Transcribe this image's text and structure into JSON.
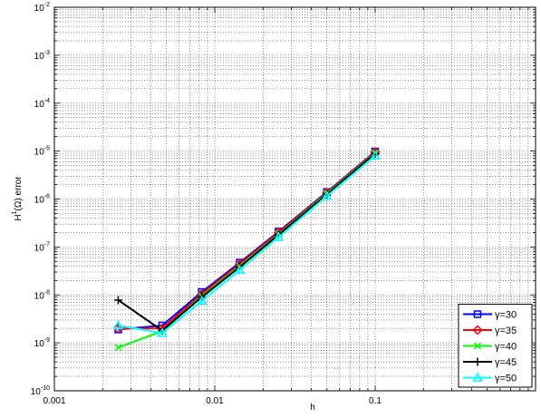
{
  "chart_data": {
    "type": "line",
    "title": "",
    "xlabel": "h",
    "ylabel_main": "H",
    "ylabel_sup": "1",
    "ylabel_rest": "(Ω) error",
    "xscale": "log",
    "yscale": "log",
    "xlim": [
      0.001,
      1
    ],
    "ylim": [
      1e-10,
      0.01
    ],
    "grid": true,
    "legend_position": "bottom-right",
    "x_ticks": [
      {
        "value": 0.001,
        "label": "0.001"
      },
      {
        "value": 0.01,
        "label": "0.01"
      },
      {
        "value": 0.1,
        "label": "0.1"
      }
    ],
    "y_ticks": [
      {
        "value": 1e-10,
        "base": "10",
        "exp": "-10"
      },
      {
        "value": 1e-09,
        "base": "10",
        "exp": "-9"
      },
      {
        "value": 1e-08,
        "base": "10",
        "exp": "-8"
      },
      {
        "value": 1e-07,
        "base": "10",
        "exp": "-7"
      },
      {
        "value": 1e-06,
        "base": "10",
        "exp": "-6"
      },
      {
        "value": 1e-05,
        "base": "10",
        "exp": "-5"
      },
      {
        "value": 0.0001,
        "base": "10",
        "exp": "-4"
      },
      {
        "value": 0.001,
        "base": "10",
        "exp": "-3"
      },
      {
        "value": 0.01,
        "base": "10",
        "exp": "-2"
      }
    ],
    "x": [
      0.1,
      0.05,
      0.025,
      0.0143,
      0.0083,
      0.0047,
      0.0025
    ],
    "series": [
      {
        "name": "γ=30",
        "color": "#0000ff",
        "marker": "square",
        "values": [
          9.8e-06,
          1.4e-06,
          2.1e-07,
          4.7e-08,
          1.15e-08,
          2.3e-09,
          1.9e-09
        ]
      },
      {
        "name": "γ=35",
        "color": "#ff0000",
        "marker": "diamond",
        "values": [
          9.5e-06,
          1.35e-06,
          2e-07,
          4.4e-08,
          1.05e-08,
          2e-09,
          2e-09
        ]
      },
      {
        "name": "γ=40",
        "color": "#00ff00",
        "marker": "x",
        "values": [
          9e-06,
          1.3e-06,
          1.85e-07,
          4e-08,
          9.5e-09,
          1.75e-09,
          8e-10
        ]
      },
      {
        "name": "γ=45",
        "color": "#000000",
        "marker": "plus",
        "values": [
          8.8e-06,
          1.25e-06,
          1.8e-07,
          3.8e-08,
          9e-09,
          1.8e-09,
          7.8e-09
        ]
      },
      {
        "name": "γ=50",
        "color": "#00ffff",
        "marker": "triangle",
        "values": [
          8e-06,
          1.15e-06,
          1.6e-07,
          3.3e-08,
          7.5e-09,
          1.6e-09,
          2.3e-09
        ]
      }
    ]
  }
}
